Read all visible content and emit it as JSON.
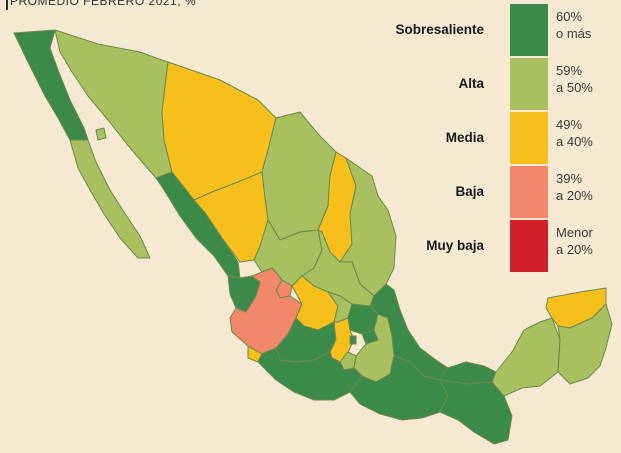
{
  "subtitle": "PROMEDIO FEBRERO 2021, %",
  "colors": {
    "sobresaliente": "#3b8a4a",
    "alta": "#a9c060",
    "media": "#f6bf1c",
    "baja": "#f2876a",
    "muy_baja": "#d0202c",
    "background": "#f6e9d2",
    "border": "#6a8a4a"
  },
  "legend": [
    {
      "label": "Sobresaliente",
      "line1": "60%",
      "line2": "o más",
      "color": "#3b8a4a"
    },
    {
      "label": "Alta",
      "line1": "59%",
      "line2": "a 50%",
      "color": "#a9c060"
    },
    {
      "label": "Media",
      "line1": "49%",
      "line2": "a 40%",
      "color": "#f6bf1c"
    },
    {
      "label": "Baja",
      "line1": "39%",
      "line2": "a 20%",
      "color": "#f2876a"
    },
    {
      "label": "Muy baja",
      "line1": "Menor",
      "line2": "a 20%",
      "color": "#d0202c"
    }
  ],
  "states": [
    {
      "name": "Baja California",
      "category": "sobresaliente"
    },
    {
      "name": "Baja California Sur",
      "category": "alta"
    },
    {
      "name": "Sonora",
      "category": "alta"
    },
    {
      "name": "Chihuahua",
      "category": "media"
    },
    {
      "name": "Coahuila",
      "category": "alta"
    },
    {
      "name": "Nuevo León",
      "category": "media"
    },
    {
      "name": "Tamaulipas",
      "category": "alta"
    },
    {
      "name": "Sinaloa",
      "category": "sobresaliente"
    },
    {
      "name": "Durango",
      "category": "media"
    },
    {
      "name": "Zacatecas",
      "category": "alta"
    },
    {
      "name": "San Luis Potosí",
      "category": "alta"
    },
    {
      "name": "Nayarit",
      "category": "sobresaliente"
    },
    {
      "name": "Jalisco",
      "category": "baja"
    },
    {
      "name": "Aguascalientes",
      "category": "baja"
    },
    {
      "name": "Guanajuato",
      "category": "media"
    },
    {
      "name": "Querétaro",
      "category": "alta"
    },
    {
      "name": "Hidalgo",
      "category": "sobresaliente"
    },
    {
      "name": "Colima",
      "category": "media"
    },
    {
      "name": "Michoacán",
      "category": "sobresaliente"
    },
    {
      "name": "Estado de México",
      "category": "media"
    },
    {
      "name": "Ciudad de México",
      "category": "sobresaliente"
    },
    {
      "name": "Morelos",
      "category": "alta"
    },
    {
      "name": "Tlaxcala",
      "category": "sobresaliente"
    },
    {
      "name": "Puebla",
      "category": "alta"
    },
    {
      "name": "Veracruz",
      "category": "sobresaliente"
    },
    {
      "name": "Guerrero",
      "category": "sobresaliente"
    },
    {
      "name": "Oaxaca",
      "category": "sobresaliente"
    },
    {
      "name": "Chiapas",
      "category": "sobresaliente"
    },
    {
      "name": "Tabasco",
      "category": "sobresaliente"
    },
    {
      "name": "Campeche",
      "category": "alta"
    },
    {
      "name": "Yucatán",
      "category": "media"
    },
    {
      "name": "Quintana Roo",
      "category": "alta"
    }
  ]
}
